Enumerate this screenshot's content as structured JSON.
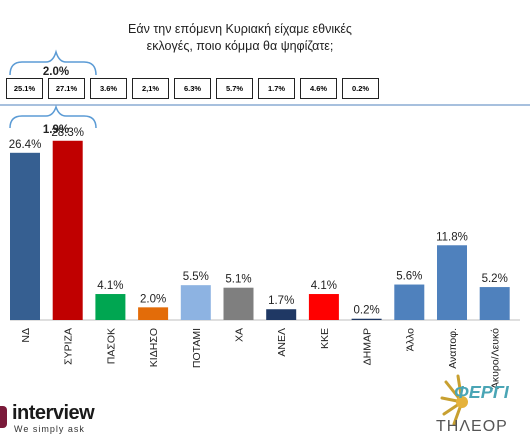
{
  "title_line1": "Εάν την επόμενη Κυριακή είχαμε εθνικές",
  "title_line2": "εκλογές, ποιο κόμμα θα ψηφίζατε;",
  "previous_results": [
    "25.1%",
    "27.1%",
    "3.6%",
    "2,1%",
    "6.3%",
    "5.7%",
    "1.7%",
    "4.6%",
    "0.2%"
  ],
  "gap_previous": "2.0%",
  "gap_current": "1.9%",
  "logo": {
    "name": "interview",
    "tagline": "We simply ask"
  },
  "partner_logo": {
    "line1": "ΦΕΡΓΙ",
    "line2": "ΤΗΛΕΟΡ"
  },
  "colors": {
    "axis_line": "#4f81bd",
    "bracket": "#5b9bd5"
  },
  "chart_data": {
    "type": "bar",
    "categories": [
      "ΝΔ",
      "ΣΥΡΙΖΑ",
      "ΠΑΣΟΚ",
      "ΚΙΔΗΣΟ",
      "ΠΟΤΑΜΙ",
      "ΧΑ",
      "ΑΝΕΛ",
      "ΚΚΕ",
      "ΔΗΜΑΡ",
      "Άλλο",
      "Αναποφ.",
      "Άκυρο/Λευκό"
    ],
    "values": [
      26.4,
      28.3,
      4.1,
      2.0,
      5.5,
      5.1,
      1.7,
      4.1,
      0.2,
      5.6,
      11.8,
      5.2
    ],
    "value_labels": [
      "26.4%",
      "28.3%",
      "4.1%",
      "2.0%",
      "5.5%",
      "5.1%",
      "1.7%",
      "4.1%",
      "0.2%",
      "5.6%",
      "11.8%",
      "5.2%"
    ],
    "colors": [
      "#365f91",
      "#c00000",
      "#00a651",
      "#e36c09",
      "#8db3e2",
      "#7f7f7f",
      "#1f3864",
      "#ff0000",
      "#1f3864",
      "#4f81bd",
      "#4f81bd",
      "#4f81bd"
    ],
    "ylim": [
      0,
      30
    ],
    "grid": false
  }
}
